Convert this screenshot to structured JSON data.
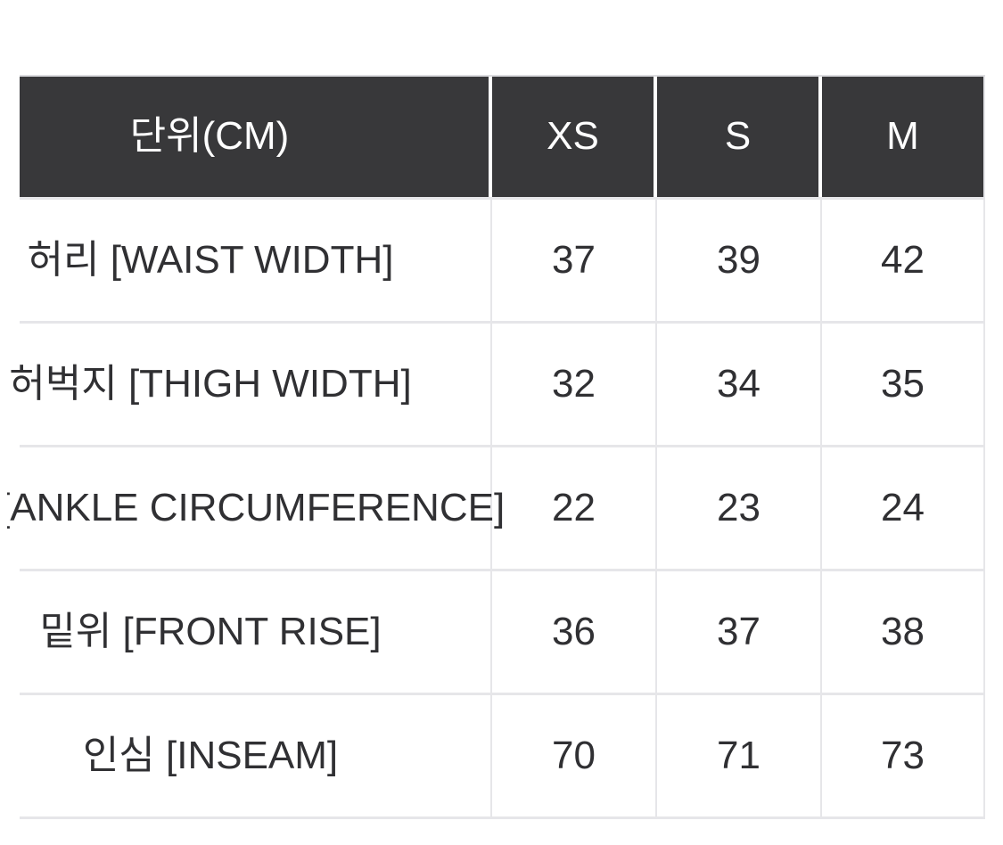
{
  "table": {
    "unit_header": "단위(CM)",
    "size_headers": [
      "XS",
      "S",
      "M"
    ],
    "rows": [
      {
        "label": "허리 [WAIST WIDTH]",
        "values": [
          "37",
          "39",
          "42"
        ]
      },
      {
        "label": "허벅지 [THIGH WIDTH]",
        "values": [
          "32",
          "34",
          "35"
        ]
      },
      {
        "label": "밑단 [ANKLE CIRCUMFERENCE]",
        "values": [
          "22",
          "23",
          "24"
        ]
      },
      {
        "label": "밑위 [FRONT RISE]",
        "values": [
          "36",
          "37",
          "38"
        ]
      },
      {
        "label": "인심 [INSEAM]",
        "values": [
          "70",
          "71",
          "73"
        ]
      }
    ],
    "colors": {
      "header_bg": "#38383a",
      "header_text": "#ffffff",
      "body_text": "#303033",
      "border": "#e6e6e9",
      "border_top": "#dcdcdf",
      "page_bg": "#ffffff"
    }
  }
}
